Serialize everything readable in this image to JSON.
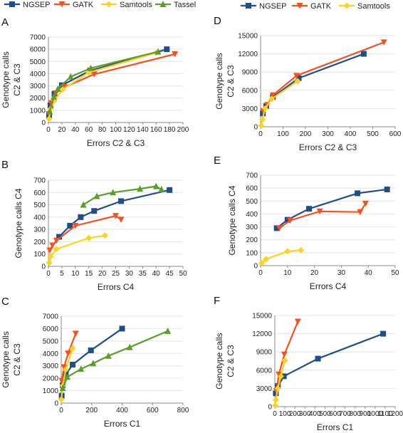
{
  "colors": {
    "NGSEP": "#1f4e8c",
    "GATK": "#f5501e",
    "Samtools": "#ffd21f",
    "Tassel": "#5b9e2a",
    "axis": "#888888",
    "grid": "#e2e2e2"
  },
  "legends": {
    "left": [
      "NGSEP",
      "GATK",
      "Samtools",
      "Tassel"
    ],
    "right": [
      "NGSEP",
      "GATK",
      "Samtools"
    ]
  },
  "chart_data": [
    {
      "id": "A",
      "type": "line",
      "letter": "A",
      "xlabel": "Errors C2 & C3",
      "ylabel": [
        "Genotype calls",
        "C2 & C3"
      ],
      "xlim": [
        0,
        200
      ],
      "xticks": [
        0,
        20,
        40,
        60,
        80,
        100,
        120,
        140,
        160,
        180,
        200
      ],
      "ylim": [
        0,
        7000
      ],
      "yticks": [
        0,
        1000,
        2000,
        3000,
        4000,
        5000,
        6000,
        7000
      ],
      "series": [
        {
          "name": "NGSEP",
          "points": [
            [
              1,
              600
            ],
            [
              3,
              1400
            ],
            [
              9,
              2350
            ],
            [
              20,
              3050
            ],
            [
              62,
              4250
            ],
            [
              176,
              6000
            ]
          ]
        },
        {
          "name": "GATK",
          "points": [
            [
              1,
              700
            ],
            [
              4,
              1600
            ],
            [
              11,
              2400
            ],
            [
              24,
              2900
            ],
            [
              68,
              3950
            ],
            [
              188,
              5600
            ]
          ]
        },
        {
          "name": "Samtools",
          "points": [
            [
              1,
              300
            ],
            [
              3,
              1100
            ],
            [
              9,
              1800
            ],
            [
              21,
              2700
            ],
            [
              60,
              4100
            ],
            [
              160,
              5700
            ]
          ]
        },
        {
          "name": "Tassel",
          "points": [
            [
              2,
              900
            ],
            [
              8,
              2100
            ],
            [
              14,
              2750
            ],
            [
              33,
              3750
            ],
            [
              63,
              4450
            ],
            [
              163,
              5800
            ]
          ]
        }
      ]
    },
    {
      "id": "B",
      "type": "line",
      "letter": "B",
      "xlabel": "Errors C4",
      "ylabel": [
        "Genotype calls C4"
      ],
      "xlim": [
        0,
        50
      ],
      "xticks": [
        0,
        5,
        10,
        15,
        20,
        25,
        30,
        35,
        40,
        45,
        50
      ],
      "ylim": [
        0,
        700
      ],
      "yticks": [
        0,
        100,
        200,
        300,
        400,
        500,
        600,
        700
      ],
      "series": [
        {
          "name": "NGSEP",
          "points": [
            [
              4,
              240
            ],
            [
              8,
              330
            ],
            [
              12,
              400
            ],
            [
              17,
              450
            ],
            [
              27,
              530
            ],
            [
              45,
              620
            ]
          ]
        },
        {
          "name": "GATK",
          "points": [
            [
              0.5,
              130
            ],
            [
              1.5,
              170
            ],
            [
              3,
              210
            ],
            [
              10,
              330
            ],
            [
              25,
              410
            ],
            [
              27,
              380
            ]
          ]
        },
        {
          "name": "Samtools",
          "points": [
            [
              0.3,
              30
            ],
            [
              0.8,
              80
            ],
            [
              3,
              140
            ],
            [
              15,
              230
            ],
            [
              21,
              250
            ]
          ]
        },
        {
          "name": "Tassel",
          "points": [
            [
              13,
              500
            ],
            [
              18,
              570
            ],
            [
              24,
              600
            ],
            [
              34,
              630
            ],
            [
              40,
              650
            ],
            [
              42,
              625
            ]
          ]
        }
      ]
    },
    {
      "id": "C",
      "type": "line",
      "letter": "C",
      "xlabel": "Errors C1",
      "ylabel": [
        "Genotype calls",
        "C2 & C3"
      ],
      "xlim": [
        0,
        800
      ],
      "xticks": [
        0,
        200,
        400,
        600,
        800
      ],
      "ylim": [
        0,
        7000
      ],
      "yticks": [
        0,
        1000,
        2000,
        3000,
        4000,
        5000,
        6000,
        7000
      ],
      "series": [
        {
          "name": "NGSEP",
          "points": [
            [
              3,
              600
            ],
            [
              10,
              1450
            ],
            [
              30,
              2300
            ],
            [
              75,
              3100
            ],
            [
              195,
              4250
            ],
            [
              400,
              6000
            ]
          ]
        },
        {
          "name": "GATK",
          "points": [
            [
              4,
              1800
            ],
            [
              18,
              2900
            ],
            [
              45,
              4000
            ],
            [
              95,
              5600
            ]
          ]
        },
        {
          "name": "Samtools",
          "points": [
            [
              1,
              300
            ],
            [
              10,
              1400
            ],
            [
              30,
              2700
            ],
            [
              75,
              4400
            ]
          ]
        },
        {
          "name": "Tassel",
          "points": [
            [
              10,
              1200
            ],
            [
              40,
              2100
            ],
            [
              130,
              2750
            ],
            [
              210,
              3200
            ],
            [
              310,
              3800
            ],
            [
              450,
              4500
            ],
            [
              700,
              5800
            ]
          ]
        }
      ]
    },
    {
      "id": "D",
      "type": "line",
      "letter": "D",
      "xlabel": "Errors C2 & C3",
      "ylabel": [
        "Genotype calls",
        "C2 & C3"
      ],
      "xlim": [
        0,
        600
      ],
      "xticks": [
        0,
        100,
        200,
        300,
        400,
        500,
        600
      ],
      "ylim": [
        0,
        15000
      ],
      "yticks": [
        0,
        3000,
        6000,
        9000,
        12000,
        15000
      ],
      "series": [
        {
          "name": "NGSEP",
          "points": [
            [
              10,
              2200
            ],
            [
              25,
              3400
            ],
            [
              55,
              4900
            ],
            [
              170,
              8000
            ],
            [
              460,
              12000
            ]
          ]
        },
        {
          "name": "GATK",
          "points": [
            [
              12,
              2600
            ],
            [
              30,
              3600
            ],
            [
              55,
              5200
            ],
            [
              160,
              8400
            ],
            [
              550,
              13900
            ]
          ]
        },
        {
          "name": "Samtools",
          "points": [
            [
              3,
              200
            ],
            [
              8,
              1200
            ],
            [
              20,
              3000
            ],
            [
              50,
              4600
            ],
            [
              165,
              7500
            ]
          ]
        }
      ]
    },
    {
      "id": "E",
      "type": "line",
      "letter": "E",
      "xlabel": "Errors C4",
      "ylabel": [
        "Genotype calls C4"
      ],
      "xlim": [
        0,
        50
      ],
      "xticks": [
        0,
        10,
        20,
        30,
        40,
        50
      ],
      "ylim": [
        0,
        700
      ],
      "yticks": [
        0,
        100,
        200,
        300,
        400,
        500,
        600,
        700
      ],
      "series": [
        {
          "name": "NGSEP",
          "points": [
            [
              6,
              290
            ],
            [
              10,
              355
            ],
            [
              18,
              440
            ],
            [
              36,
              560
            ],
            [
              47,
              590
            ]
          ]
        },
        {
          "name": "GATK",
          "points": [
            [
              7,
              290
            ],
            [
              11,
              350
            ],
            [
              22,
              420
            ],
            [
              37,
              415
            ],
            [
              39,
              480
            ]
          ]
        },
        {
          "name": "Samtools",
          "points": [
            [
              0.5,
              20
            ],
            [
              2,
              50
            ],
            [
              10,
              110
            ],
            [
              15,
              120
            ]
          ]
        }
      ]
    },
    {
      "id": "F",
      "type": "line",
      "letter": "F",
      "xlabel": "Errors C1",
      "ylabel": [
        "Genotype calls",
        "C2 & C3"
      ],
      "xlim": [
        0,
        1200
      ],
      "xticks": [
        0,
        100,
        200,
        300,
        400,
        500,
        600,
        700,
        800,
        900,
        1000,
        1100,
        1200
      ],
      "ylim": [
        0,
        15000
      ],
      "yticks": [
        0,
        3000,
        6000,
        9000,
        12000,
        15000
      ],
      "series": [
        {
          "name": "NGSEP",
          "points": [
            [
              10,
              2200
            ],
            [
              30,
              3400
            ],
            [
              90,
              5000
            ],
            [
              430,
              7900
            ],
            [
              1080,
              12000
            ]
          ]
        },
        {
          "name": "GATK",
          "points": [
            [
              15,
              2600
            ],
            [
              40,
              5300
            ],
            [
              95,
              8600
            ],
            [
              230,
              14000
            ]
          ]
        },
        {
          "name": "Samtools",
          "points": [
            [
              3,
              200
            ],
            [
              10,
              1100
            ],
            [
              30,
              3000
            ],
            [
              60,
              5000
            ],
            [
              100,
              7600
            ]
          ]
        }
      ]
    }
  ]
}
